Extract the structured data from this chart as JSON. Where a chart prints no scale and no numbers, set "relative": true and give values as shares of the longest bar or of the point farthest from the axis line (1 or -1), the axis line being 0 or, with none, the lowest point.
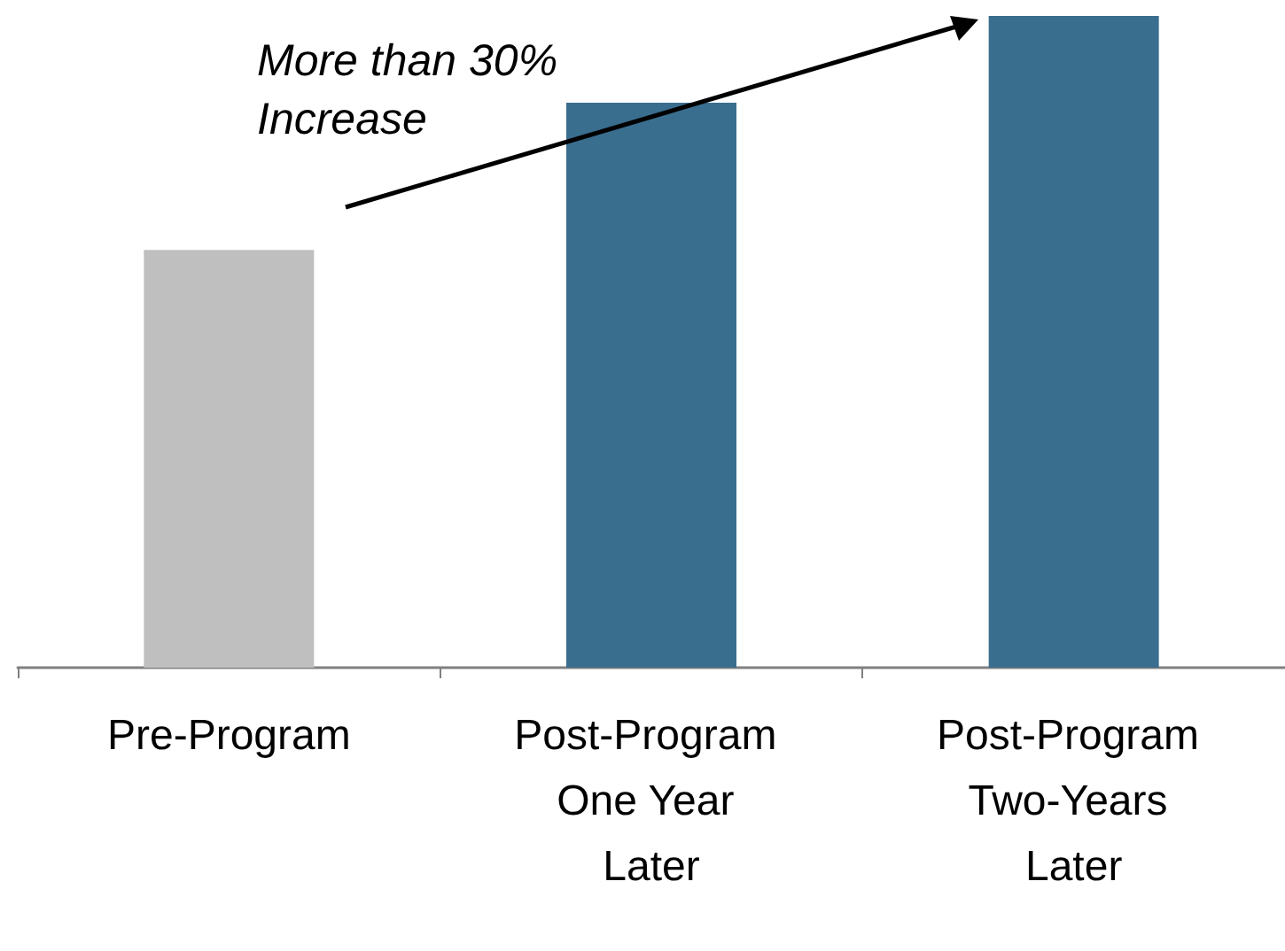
{
  "chart_data": {
    "type": "bar",
    "relative": true,
    "categories": [
      "Pre-Program",
      "Post-Program One Year Later",
      "Post-Program Two-Years Later"
    ],
    "values": [
      0.641,
      0.867,
      1
    ],
    "colors": [
      "#bfbfbf",
      "#3a6e8f",
      "#3a6e8f"
    ],
    "annotations": [
      "More than 30% Increase"
    ]
  }
}
